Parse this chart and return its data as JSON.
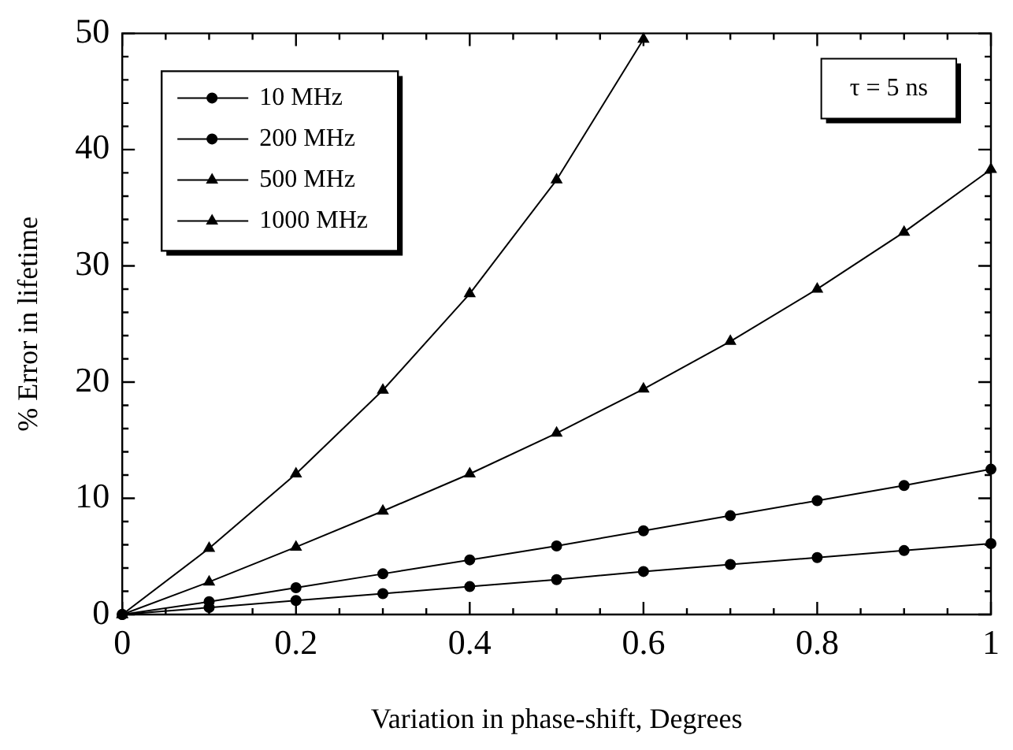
{
  "chart_data": {
    "type": "line",
    "xlabel": "Variation in phase-shift, Degrees",
    "ylabel": "% Error in lifetime",
    "x": [
      0,
      0.1,
      0.2,
      0.3,
      0.4,
      0.5,
      0.6,
      0.7,
      0.8,
      0.9,
      1
    ],
    "series": [
      {
        "name": "10 MHz",
        "color": "#000000",
        "marker": "circle",
        "values": [
          0,
          0.6,
          1.2,
          1.8,
          2.4,
          3.0,
          3.7,
          4.3,
          4.9,
          5.5,
          6.1
        ]
      },
      {
        "name": "200 MHz",
        "color": "#000000",
        "marker": "circle",
        "values": [
          0,
          1.1,
          2.3,
          3.5,
          4.7,
          5.9,
          7.2,
          8.5,
          9.8,
          11.1,
          12.5
        ]
      },
      {
        "name": "500 MHz",
        "color": "#000000",
        "marker": "triangle",
        "values": [
          0,
          2.8,
          5.8,
          8.9,
          12.1,
          15.6,
          19.4,
          23.5,
          28.0,
          32.9,
          38.3
        ]
      },
      {
        "name": "1000 MHz",
        "color": "#000000",
        "marker": "triangle",
        "values": [
          0,
          5.7,
          12.1,
          19.3,
          27.6,
          37.4,
          49.5,
          null,
          null,
          null,
          null
        ]
      }
    ],
    "xlim": [
      0,
      1
    ],
    "xticks": [
      0,
      {
        "value": 0.05,
        "label": null
      },
      {
        "value": 0.1,
        "label": null
      },
      {
        "value": 0.15,
        "label": null
      },
      0.2,
      {
        "value": 0.25,
        "label": null
      },
      {
        "value": 0.3,
        "label": null
      },
      {
        "value": 0.35,
        "label": null
      },
      0.4,
      {
        "value": 0.45,
        "label": null
      },
      {
        "value": 0.5,
        "label": null
      },
      {
        "value": 0.55,
        "label": null
      },
      0.6,
      {
        "value": 0.65,
        "label": null
      },
      {
        "value": 0.7,
        "label": null
      },
      {
        "value": 0.75,
        "label": null
      },
      0.8,
      {
        "value": 0.85,
        "label": null
      },
      {
        "value": 0.9,
        "label": null
      },
      {
        "value": 0.95,
        "label": null
      },
      1
    ],
    "ylim": [
      0,
      50
    ],
    "yticks": [
      0,
      {
        "value": 2,
        "label": null
      },
      {
        "value": 4,
        "label": null
      },
      {
        "value": 6,
        "label": null
      },
      {
        "value": 8,
        "label": null
      },
      10,
      {
        "value": 12,
        "label": null
      },
      {
        "value": 14,
        "label": null
      },
      {
        "value": 16,
        "label": null
      },
      {
        "value": 18,
        "label": null
      },
      20,
      {
        "value": 22,
        "label": null
      },
      {
        "value": 24,
        "label": null
      },
      {
        "value": 26,
        "label": null
      },
      {
        "value": 28,
        "label": null
      },
      30,
      {
        "value": 32,
        "label": null
      },
      {
        "value": 34,
        "label": null
      },
      {
        "value": 36,
        "label": null
      },
      {
        "value": 38,
        "label": null
      },
      40,
      {
        "value": 42,
        "label": null
      },
      {
        "value": 44,
        "label": null
      },
      {
        "value": 46,
        "label": null
      },
      {
        "value": 48,
        "label": null
      },
      50
    ],
    "legend": "top left",
    "grid": false,
    "line_style": "solid",
    "annotations": [
      "τ = 5 ns"
    ]
  }
}
